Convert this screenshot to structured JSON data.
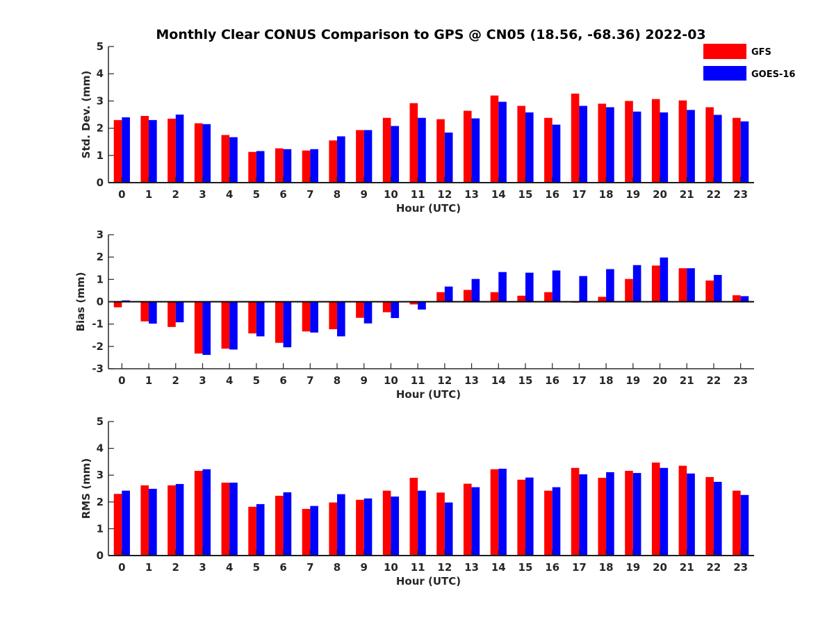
{
  "title": "Monthly Clear CONUS Comparison to GPS @ CN05 (18.56, -68.36) 2022-03",
  "colors": {
    "GFS": "#ff0000",
    "GOES-16": "#0000ff"
  },
  "legend": [
    {
      "name": "GFS",
      "color": "#ff0000"
    },
    {
      "name": "GOES-16",
      "color": "#0000ff"
    }
  ],
  "chart_data": [
    {
      "type": "bar",
      "title": "Monthly Clear CONUS Comparison to GPS @ CN05 (18.56, -68.36) 2022-03",
      "xlabel": "Hour (UTC)",
      "ylabel": "Std. Dev. (mm)",
      "ylim": [
        0,
        5
      ],
      "yticks": [
        0,
        1,
        2,
        3,
        4,
        5
      ],
      "categories": [
        "0",
        "1",
        "2",
        "3",
        "4",
        "5",
        "6",
        "7",
        "8",
        "9",
        "10",
        "11",
        "12",
        "13",
        "14",
        "15",
        "16",
        "17",
        "18",
        "19",
        "20",
        "21",
        "22",
        "23"
      ],
      "legend_position": "top-right",
      "series": [
        {
          "name": "GFS",
          "values": [
            2.3,
            2.45,
            2.35,
            2.18,
            1.75,
            1.13,
            1.26,
            1.18,
            1.55,
            1.93,
            2.38,
            2.92,
            2.33,
            2.64,
            3.2,
            2.82,
            2.38,
            3.27,
            2.9,
            3.0,
            3.07,
            3.02,
            2.77,
            2.38
          ]
        },
        {
          "name": "GOES-16",
          "values": [
            2.4,
            2.3,
            2.5,
            2.15,
            1.67,
            1.16,
            1.23,
            1.23,
            1.7,
            1.93,
            2.08,
            2.38,
            1.84,
            2.36,
            2.97,
            2.58,
            2.13,
            2.82,
            2.77,
            2.61,
            2.58,
            2.67,
            2.49,
            2.25
          ]
        }
      ]
    },
    {
      "type": "bar",
      "xlabel": "Hour (UTC)",
      "ylabel": "Bias (mm)",
      "ylim": [
        -3,
        3
      ],
      "yticks": [
        -3,
        -2,
        -1,
        0,
        1,
        2,
        3
      ],
      "categories": [
        "0",
        "1",
        "2",
        "3",
        "4",
        "5",
        "6",
        "7",
        "8",
        "9",
        "10",
        "11",
        "12",
        "13",
        "14",
        "15",
        "16",
        "17",
        "18",
        "19",
        "20",
        "21",
        "22",
        "23"
      ],
      "series": [
        {
          "name": "GFS",
          "values": [
            -0.25,
            -0.88,
            -1.13,
            -2.32,
            -2.1,
            -1.42,
            -1.84,
            -1.33,
            -1.23,
            -0.72,
            -0.47,
            -0.12,
            0.43,
            0.53,
            0.43,
            0.27,
            0.43,
            -0.04,
            0.22,
            1.02,
            1.62,
            1.5,
            0.95,
            0.29
          ]
        },
        {
          "name": "GOES-16",
          "values": [
            0.06,
            -0.98,
            -0.92,
            -2.38,
            -2.14,
            -1.55,
            -2.04,
            -1.38,
            -1.55,
            -0.97,
            -0.73,
            -0.35,
            0.68,
            1.02,
            1.33,
            1.3,
            1.4,
            1.15,
            1.46,
            1.64,
            1.98,
            1.5,
            1.2,
            0.25
          ]
        }
      ]
    },
    {
      "type": "bar",
      "xlabel": "Hour (UTC)",
      "ylabel": "RMS (mm)",
      "ylim": [
        0,
        5
      ],
      "yticks": [
        0,
        1,
        2,
        3,
        4,
        5
      ],
      "categories": [
        "0",
        "1",
        "2",
        "3",
        "4",
        "5",
        "6",
        "7",
        "8",
        "9",
        "10",
        "11",
        "12",
        "13",
        "14",
        "15",
        "16",
        "17",
        "18",
        "19",
        "20",
        "21",
        "22",
        "23"
      ],
      "series": [
        {
          "name": "GFS",
          "values": [
            2.3,
            2.62,
            2.62,
            3.16,
            2.72,
            1.82,
            2.23,
            1.74,
            1.98,
            2.08,
            2.42,
            2.9,
            2.35,
            2.68,
            3.22,
            2.83,
            2.42,
            3.27,
            2.9,
            3.16,
            3.47,
            3.35,
            2.93,
            2.42
          ]
        },
        {
          "name": "GOES-16",
          "values": [
            2.42,
            2.49,
            2.67,
            3.22,
            2.72,
            1.92,
            2.36,
            1.85,
            2.29,
            2.13,
            2.2,
            2.42,
            1.98,
            2.55,
            3.24,
            2.91,
            2.55,
            3.03,
            3.11,
            3.08,
            3.27,
            3.06,
            2.75,
            2.26
          ]
        }
      ]
    }
  ]
}
